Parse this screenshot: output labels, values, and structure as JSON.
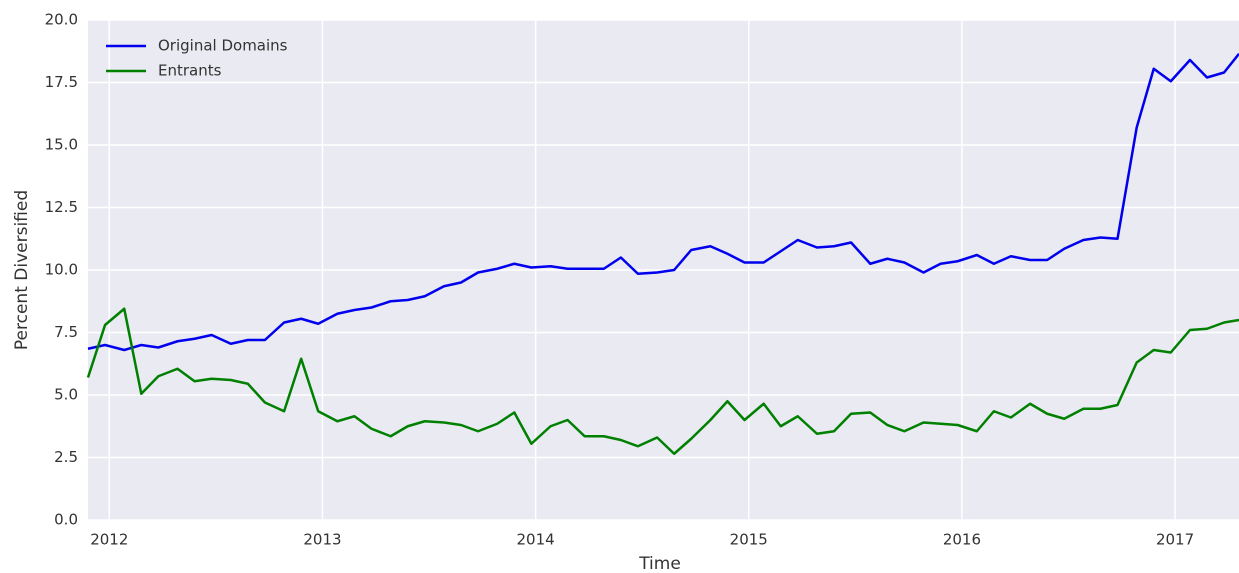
{
  "chart_data": {
    "type": "line",
    "xlabel": "Time",
    "ylabel": "Percent Diversified",
    "x": [
      2011.9,
      2011.98,
      2012.07,
      2012.15,
      2012.23,
      2012.32,
      2012.4,
      2012.48,
      2012.57,
      2012.65,
      2012.73,
      2012.82,
      2012.9,
      2012.98,
      2013.07,
      2013.15,
      2013.23,
      2013.32,
      2013.4,
      2013.48,
      2013.57,
      2013.65,
      2013.73,
      2013.82,
      2013.9,
      2013.98,
      2014.07,
      2014.15,
      2014.23,
      2014.32,
      2014.4,
      2014.48,
      2014.57,
      2014.65,
      2014.73,
      2014.82,
      2014.9,
      2014.98,
      2015.07,
      2015.15,
      2015.23,
      2015.32,
      2015.4,
      2015.48,
      2015.57,
      2015.65,
      2015.73,
      2015.82,
      2015.9,
      2015.98,
      2016.07,
      2016.15,
      2016.23,
      2016.32,
      2016.4,
      2016.48,
      2016.57,
      2016.65,
      2016.73,
      2016.82,
      2016.9,
      2016.98,
      2017.07,
      2017.15,
      2017.23,
      2017.3
    ],
    "series": [
      {
        "name": "Original Domains",
        "color": "#0000ee",
        "values": [
          6.85,
          7.0,
          6.8,
          7.0,
          6.9,
          7.15,
          7.25,
          7.4,
          7.05,
          7.2,
          7.2,
          7.9,
          8.05,
          7.85,
          8.25,
          8.4,
          8.5,
          8.75,
          8.8,
          8.95,
          9.35,
          9.5,
          9.9,
          10.05,
          10.25,
          10.1,
          10.15,
          10.05,
          10.05,
          10.05,
          10.5,
          9.85,
          9.9,
          10.0,
          10.8,
          10.95,
          10.65,
          10.3,
          10.3,
          10.75,
          11.2,
          10.9,
          10.95,
          11.1,
          10.25,
          10.45,
          10.3,
          9.9,
          10.25,
          10.35,
          10.6,
          10.25,
          10.55,
          10.4,
          10.4,
          10.85,
          11.2,
          11.3,
          11.25,
          15.7,
          18.05,
          17.55,
          18.4,
          17.7,
          17.9,
          18.65
        ]
      },
      {
        "name": "Entrants",
        "color": "#008000",
        "values": [
          5.7,
          7.8,
          8.45,
          5.05,
          5.75,
          6.05,
          5.55,
          5.65,
          5.6,
          5.45,
          4.7,
          4.35,
          6.45,
          4.35,
          3.95,
          4.15,
          3.65,
          3.35,
          3.75,
          3.95,
          3.9,
          3.8,
          3.55,
          3.85,
          4.3,
          3.05,
          3.75,
          4.0,
          3.35,
          3.35,
          3.2,
          2.95,
          3.3,
          2.65,
          3.25,
          4.0,
          4.75,
          4.0,
          4.65,
          3.75,
          4.15,
          3.45,
          3.55,
          4.25,
          4.3,
          3.8,
          3.55,
          3.9,
          3.85,
          3.8,
          3.55,
          4.35,
          4.1,
          4.65,
          4.25,
          4.05,
          4.45,
          4.45,
          4.6,
          6.3,
          6.8,
          6.7,
          7.6,
          7.65,
          7.9,
          8.0
        ]
      }
    ],
    "xlim": [
      2011.9,
      2017.3
    ],
    "xticks": [
      2012,
      2013,
      2014,
      2015,
      2016,
      2017
    ],
    "ylim": [
      0,
      20
    ],
    "yticks": [
      {
        "value": 0,
        "label": "0.0"
      },
      2.5,
      {
        "value": 5,
        "label": "5.0"
      },
      7.5,
      {
        "value": 10,
        "label": "10.0"
      },
      12.5,
      {
        "value": 15,
        "label": "15.0"
      },
      17.5,
      {
        "value": 20,
        "label": "20.0"
      }
    ],
    "grid": true,
    "legend": "upper left"
  }
}
